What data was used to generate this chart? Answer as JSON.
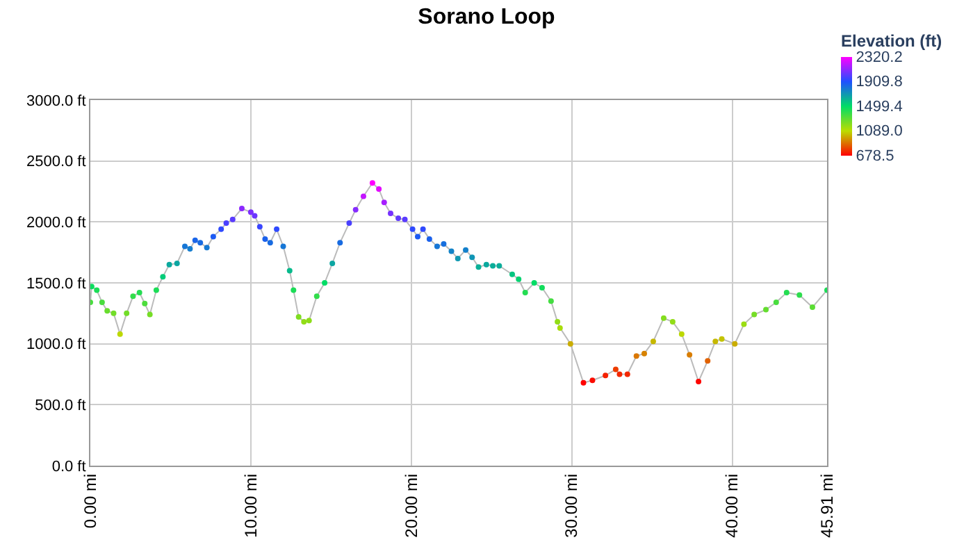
{
  "chart_data": {
    "type": "line",
    "title": "Sorano Loop",
    "x": [
      0,
      0.08,
      0.4,
      0.73,
      1.05,
      1.45,
      1.85,
      2.26,
      2.66,
      3.06,
      3.39,
      3.71,
      4.11,
      4.52,
      4.92,
      5.4,
      5.89,
      6.21,
      6.53,
      6.85,
      7.26,
      7.66,
      8.15,
      8.47,
      8.87,
      9.44,
      10.0,
      10.24,
      10.56,
      10.89,
      11.21,
      11.61,
      12.02,
      12.42,
      12.66,
      12.98,
      13.31,
      13.63,
      14.11,
      14.6,
      15.08,
      15.56,
      16.13,
      16.53,
      17.02,
      17.58,
      17.98,
      18.31,
      18.71,
      19.19,
      19.6,
      20.08,
      20.4,
      20.73,
      21.13,
      21.61,
      22.02,
      22.5,
      22.9,
      23.39,
      23.79,
      24.19,
      24.68,
      25.08,
      25.48,
      26.29,
      26.69,
      27.1,
      27.66,
      28.15,
      28.71,
      29.11,
      29.27,
      29.92,
      30.73,
      31.29,
      32.1,
      32.74,
      32.98,
      33.47,
      34.03,
      34.52,
      35.08,
      35.73,
      36.29,
      36.85,
      37.34,
      37.9,
      38.47,
      38.95,
      39.35,
      40.16,
      40.73,
      41.37,
      42.1,
      42.74,
      43.39,
      44.19,
      45.0,
      45.91
    ],
    "series": [
      {
        "values": [
          1340,
          1470,
          1440,
          1340,
          1270,
          1250,
          1080,
          1250,
          1390,
          1420,
          1330,
          1240,
          1440,
          1550,
          1650,
          1660,
          1800,
          1780,
          1850,
          1830,
          1790,
          1880,
          1940,
          1990,
          2020,
          2110,
          2080,
          2050,
          1960,
          1860,
          1830,
          1940,
          1800,
          1600,
          1440,
          1220,
          1180,
          1190,
          1390,
          1500,
          1660,
          1830,
          1990,
          2100,
          2210,
          2320,
          2270,
          2160,
          2070,
          2030,
          2020,
          1940,
          1880,
          1940,
          1860,
          1800,
          1820,
          1760,
          1700,
          1770,
          1710,
          1630,
          1650,
          1640,
          1640,
          1570,
          1530,
          1420,
          1500,
          1460,
          1350,
          1180,
          1130,
          1000,
          680,
          700,
          740,
          790,
          750,
          750,
          900,
          920,
          1020,
          1210,
          1180,
          1080,
          910,
          690,
          860,
          1020,
          1040,
          1000,
          1160,
          1240,
          1280,
          1340,
          1420,
          1400,
          1300,
          1440
        ]
      }
    ],
    "xlim": [
      0,
      45.91
    ],
    "xticks": [
      {
        "value": 0,
        "label": "0.00 mi"
      },
      {
        "value": 10,
        "label": "10.00 mi"
      },
      {
        "value": 20,
        "label": "20.00 mi"
      },
      {
        "value": 30,
        "label": "30.00 mi"
      },
      {
        "value": 40,
        "label": "40.00 mi"
      },
      {
        "value": 45.91,
        "label": "45.91 mi"
      }
    ],
    "ylim": [
      0,
      3000
    ],
    "yticks": [
      {
        "value": 0,
        "label": "0.0 ft"
      },
      {
        "value": 500,
        "label": "500.0 ft"
      },
      {
        "value": 1000,
        "label": "1000.0 ft"
      },
      {
        "value": 1500,
        "label": "1500.0 ft"
      },
      {
        "value": 2000,
        "label": "2000.0 ft"
      },
      {
        "value": 2500,
        "label": "2500.0 ft"
      },
      {
        "value": 3000,
        "label": "3000.0 ft"
      }
    ],
    "grid": true,
    "marker": "circle",
    "clabel": "Elevation (ft)",
    "clim": [
      678.5,
      2320.2
    ],
    "cticks": [
      2320.2,
      1909.8,
      1499.4,
      {
        "value": 1089,
        "label": "1089.0"
      },
      678.5
    ]
  }
}
